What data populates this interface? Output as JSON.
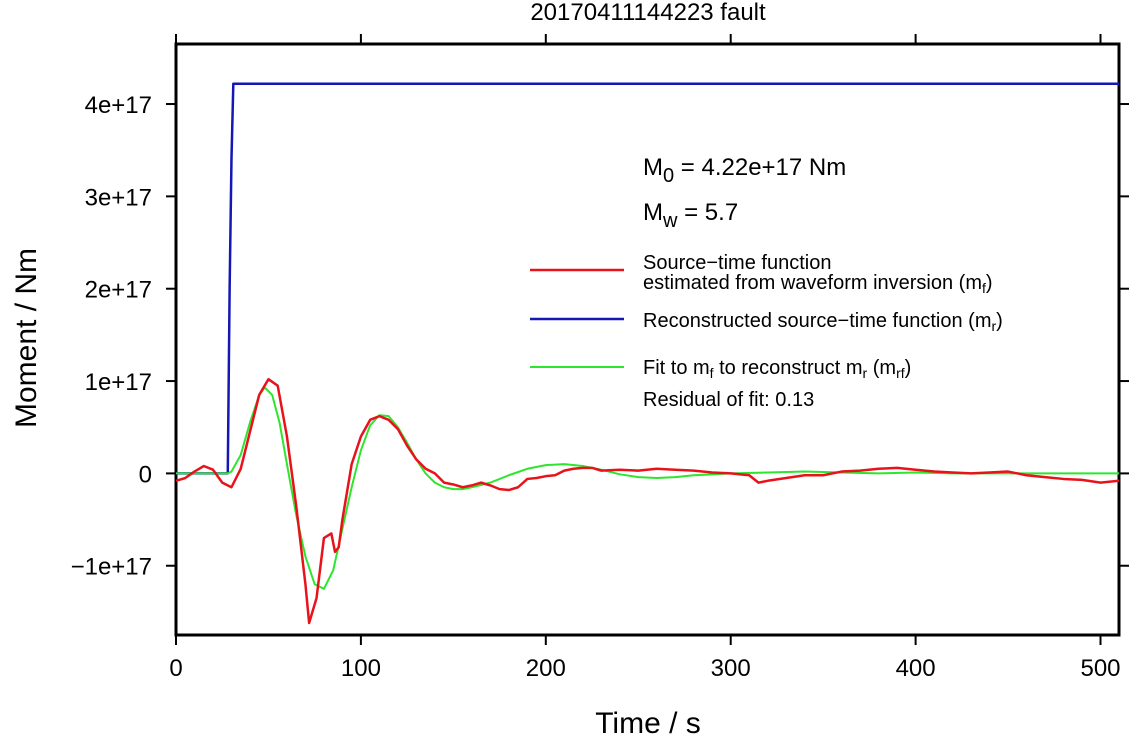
{
  "chart_data": {
    "type": "line",
    "title": "20170411144223 fault",
    "xlabel": "Time / s",
    "ylabel": "Moment / Nm",
    "xlim": [
      0,
      510
    ],
    "ylim": [
      -1.75e+17,
      4.65e+17
    ],
    "grid": false,
    "x_ticks": [
      0,
      100,
      200,
      300,
      400,
      500
    ],
    "x_tick_labels": [
      "0",
      "100",
      "200",
      "300",
      "400",
      "500"
    ],
    "y_ticks": [
      -1e+17,
      0,
      1e+17,
      2e+17,
      3e+17,
      4e+17
    ],
    "y_tick_labels": [
      "−1e+17",
      "0",
      "1e+17",
      "2e+17",
      "3e+17",
      "4e+17"
    ],
    "annotations": {
      "m0": {
        "base": "M",
        "sub": "0",
        "rest": " = 4.22e+17 Nm"
      },
      "mw": {
        "base": "M",
        "sub": "w",
        "rest": " = 5.7"
      },
      "residual": "Residual of fit: 0.13"
    },
    "legend_position": "right",
    "series": [
      {
        "key": "red",
        "color": "#e8131a",
        "legend_line1": "Source−time function",
        "legend_line2_prefix": "estimated from waveform inversion (m",
        "legend_line2_sub": "f",
        "legend_line2_suffix": ")",
        "x": [
          0,
          5,
          10,
          15,
          20,
          25,
          30,
          35,
          40,
          45,
          50,
          55,
          60,
          65,
          70,
          72,
          76,
          80,
          84,
          86,
          88,
          90,
          95,
          100,
          105,
          110,
          115,
          120,
          125,
          130,
          135,
          140,
          145,
          150,
          155,
          160,
          165,
          170,
          175,
          180,
          185,
          190,
          195,
          200,
          205,
          210,
          215,
          220,
          225,
          230,
          240,
          250,
          260,
          270,
          280,
          290,
          300,
          310,
          315,
          320,
          330,
          340,
          350,
          360,
          370,
          380,
          390,
          400,
          410,
          420,
          430,
          440,
          450,
          460,
          470,
          480,
          490,
          500,
          510
        ],
        "y": [
          -8000000000000000.0,
          -5000000000000000.0,
          2000000000000000.0,
          8000000000000000.0,
          4000000000000000.0,
          -1e+16,
          -1.5e+16,
          5000000000000000.0,
          4.5e+16,
          8.5e+16,
          1.02e+17,
          9.5e+16,
          4e+16,
          -3.5e+16,
          -1.2e+17,
          -1.62e+17,
          -1.35e+17,
          -7e+16,
          -6.5e+16,
          -8.5e+16,
          -8e+16,
          -5e+16,
          1e+16,
          4e+16,
          5.8e+16,
          6.2e+16,
          5.8e+16,
          4.8e+16,
          3e+16,
          1.5e+16,
          5000000000000000.0,
          0,
          -1e+16,
          -1.2e+16,
          -1.5e+16,
          -1.3e+16,
          -1e+16,
          -1.3e+16,
          -1.7e+16,
          -1.8e+16,
          -1.5e+16,
          -6000000000000000.0,
          -5000000000000000.0,
          -3000000000000000.0,
          -2000000000000000.0,
          3000000000000000.0,
          5000000000000000.0,
          6000000000000000.0,
          6000000000000000.0,
          3000000000000000.0,
          4000000000000000.0,
          3000000000000000.0,
          5000000000000000.0,
          4000000000000000.0,
          3000000000000000.0,
          1000000000000000.0,
          0,
          -2000000000000000.0,
          -1e+16,
          -8000000000000000.0,
          -5000000000000000.0,
          -2000000000000000.0,
          -2000000000000000.0,
          2000000000000000.0,
          3000000000000000.0,
          5000000000000000.0,
          6000000000000000.0,
          4000000000000000.0,
          2000000000000000.0,
          1000000000000000.0,
          0,
          1000000000000000.0,
          2000000000000000.0,
          -2000000000000000.0,
          -4000000000000000.0,
          -6000000000000000.0,
          -7000000000000000.0,
          -1e+16,
          -8000000000000000.0
        ]
      },
      {
        "key": "blue",
        "color": "#1417b4",
        "legend_prefix": "Reconstructed source−time function (m",
        "legend_sub": "r",
        "legend_suffix": ")",
        "x": [
          0,
          28,
          29,
          30,
          31,
          510
        ],
        "y": [
          0,
          0,
          2e+17,
          3.4e+17,
          4.22e+17,
          4.22e+17
        ]
      },
      {
        "key": "green",
        "color": "#2ee52e",
        "legend_prefix": "Fit to m",
        "legend_sub1": "f",
        "legend_mid": " to reconstruct m",
        "legend_sub2": "r",
        "legend_mid2": " (m",
        "legend_sub3": "rf",
        "legend_suffix": ")",
        "x": [
          0,
          28,
          30,
          35,
          40,
          45,
          48,
          52,
          56,
          60,
          65,
          70,
          75,
          80,
          85,
          90,
          95,
          100,
          105,
          110,
          115,
          120,
          125,
          130,
          135,
          140,
          145,
          150,
          155,
          160,
          170,
          180,
          190,
          200,
          210,
          220,
          230,
          240,
          250,
          260,
          270,
          280,
          290,
          300,
          320,
          340,
          360,
          380,
          400,
          420,
          440,
          460,
          480,
          500,
          510
        ],
        "y": [
          0,
          0,
          2000000000000000.0,
          2e+16,
          5.5e+16,
          8.5e+16,
          9.3e+16,
          8.5e+16,
          5.5e+16,
          1e+16,
          -4.5e+16,
          -9e+16,
          -1.2e+17,
          -1.25e+17,
          -1.05e+17,
          -6e+16,
          -1.5e+16,
          2.5e+16,
          5.2e+16,
          6.3e+16,
          6.2e+16,
          5e+16,
          3.3e+16,
          1.5e+16,
          0,
          -1e+16,
          -1.5e+16,
          -1.7e+16,
          -1.7e+16,
          -1.5e+16,
          -1e+16,
          -2000000000000000.0,
          5000000000000000.0,
          9000000000000000.0,
          1e+16,
          8000000000000000.0,
          4000000000000000.0,
          -1000000000000000.0,
          -4000000000000000.0,
          -5000000000000000.0,
          -4000000000000000.0,
          -2000000000000000.0,
          -1000000000000000.0,
          0,
          1000000000000000.0,
          2000000000000000.0,
          1000000000000000.0,
          0,
          1000000000000000.0,
          0,
          0,
          0,
          0,
          0,
          0
        ]
      }
    ]
  }
}
